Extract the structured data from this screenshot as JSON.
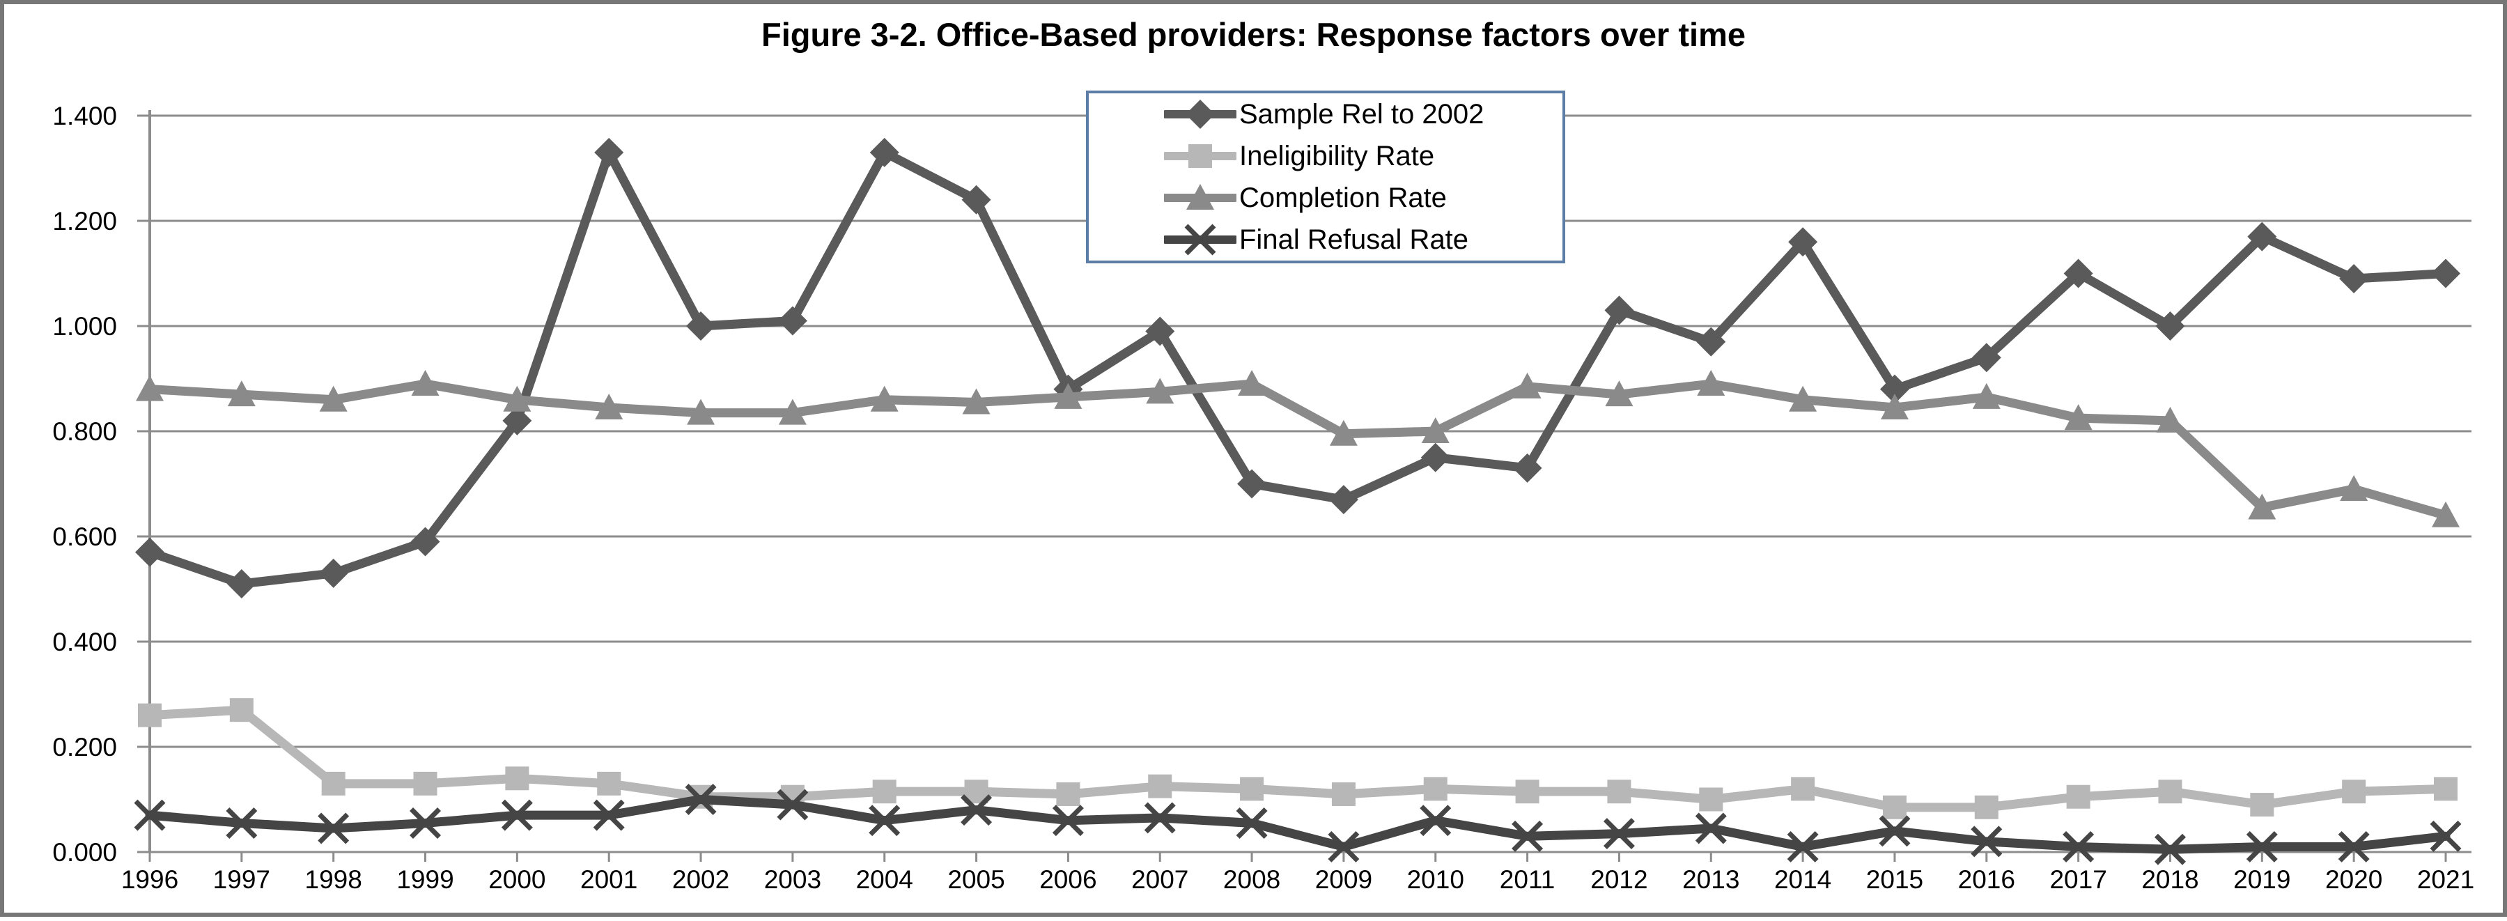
{
  "chart_data": {
    "type": "line",
    "title": "Figure 3-2. Office-Based providers: Response factors over time",
    "x": [
      "1996",
      "1997",
      "1998",
      "1999",
      "2000",
      "2001",
      "2002",
      "2003",
      "2004",
      "2005",
      "2006",
      "2007",
      "2008",
      "2009",
      "2010",
      "2011",
      "2012",
      "2013",
      "2014",
      "2015",
      "2016",
      "2017",
      "2018",
      "2019",
      "2020",
      "2021"
    ],
    "ylim": [
      0.0,
      1.4
    ],
    "yticks": [
      0.0,
      0.2,
      0.4,
      0.6,
      0.8,
      1.0,
      1.2,
      1.4
    ],
    "ytick_labels": [
      "0.000",
      "0.200",
      "0.400",
      "0.600",
      "0.800",
      "1.000",
      "1.200",
      "1.400"
    ],
    "grid": true,
    "legend_position": "top-center-inside",
    "series": [
      {
        "name": "Sample Rel to 2002",
        "marker": "diamond",
        "color": "#5a5a5a",
        "values": [
          0.57,
          0.51,
          0.53,
          0.59,
          0.82,
          1.33,
          1.0,
          1.01,
          1.33,
          1.24,
          0.88,
          0.99,
          0.7,
          0.67,
          0.75,
          0.73,
          1.03,
          0.97,
          1.16,
          0.88,
          0.94,
          1.1,
          1.0,
          1.17,
          1.09,
          1.1
        ]
      },
      {
        "name": "Ineligibility Rate",
        "marker": "square",
        "color": "#b7b7b7",
        "values": [
          0.26,
          0.27,
          0.13,
          0.13,
          0.14,
          0.13,
          0.105,
          0.105,
          0.115,
          0.115,
          0.11,
          0.125,
          0.12,
          0.11,
          0.12,
          0.115,
          0.115,
          0.1,
          0.12,
          0.085,
          0.085,
          0.105,
          0.115,
          0.09,
          0.115,
          0.12
        ]
      },
      {
        "name": "Completion Rate",
        "marker": "triangle",
        "color": "#8a8a8a",
        "values": [
          0.88,
          0.87,
          0.86,
          0.89,
          0.86,
          0.845,
          0.835,
          0.835,
          0.86,
          0.855,
          0.865,
          0.875,
          0.89,
          0.795,
          0.8,
          0.885,
          0.87,
          0.89,
          0.86,
          0.845,
          0.865,
          0.825,
          0.82,
          0.655,
          0.69,
          0.64
        ]
      },
      {
        "name": "Final Refusal Rate",
        "marker": "x",
        "color": "#454545",
        "values": [
          0.07,
          0.055,
          0.045,
          0.055,
          0.07,
          0.07,
          0.1,
          0.09,
          0.06,
          0.08,
          0.06,
          0.065,
          0.055,
          0.01,
          0.06,
          0.03,
          0.035,
          0.045,
          0.01,
          0.04,
          0.02,
          0.01,
          0.005,
          0.01,
          0.01,
          0.03
        ]
      }
    ]
  },
  "colors": {
    "background": "#ffffff",
    "frame_border": "#777777",
    "gridline": "#8c8c8c",
    "axis": "#8c8c8c",
    "legend_border": "#5b7da6",
    "text": "#000000"
  }
}
